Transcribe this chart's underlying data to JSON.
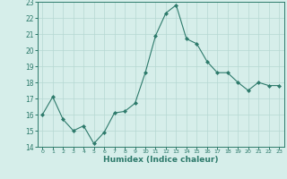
{
  "x": [
    0,
    1,
    2,
    3,
    4,
    5,
    6,
    7,
    8,
    9,
    10,
    11,
    12,
    13,
    14,
    15,
    16,
    17,
    18,
    19,
    20,
    21,
    22,
    23
  ],
  "y": [
    16.0,
    17.1,
    15.7,
    15.0,
    15.3,
    14.2,
    14.9,
    16.1,
    16.2,
    16.7,
    18.6,
    20.9,
    22.3,
    22.8,
    20.7,
    20.4,
    19.3,
    18.6,
    18.6,
    18.0,
    17.5,
    18.0,
    17.8,
    17.8
  ],
  "xlabel": "Humidex (Indice chaleur)",
  "ylim": [
    14,
    23
  ],
  "xlim": [
    -0.5,
    23.5
  ],
  "yticks": [
    14,
    15,
    16,
    17,
    18,
    19,
    20,
    21,
    22,
    23
  ],
  "xticks": [
    0,
    1,
    2,
    3,
    4,
    5,
    6,
    7,
    8,
    9,
    10,
    11,
    12,
    13,
    14,
    15,
    16,
    17,
    18,
    19,
    20,
    21,
    22,
    23
  ],
  "line_color": "#2d7a6b",
  "marker_color": "#2d7a6b",
  "bg_color": "#d6eeea",
  "grid_color": "#b5d8d2",
  "xlabel_color": "#2d7a6b",
  "tick_color": "#2d7a6b",
  "spine_color": "#2d7a6b"
}
